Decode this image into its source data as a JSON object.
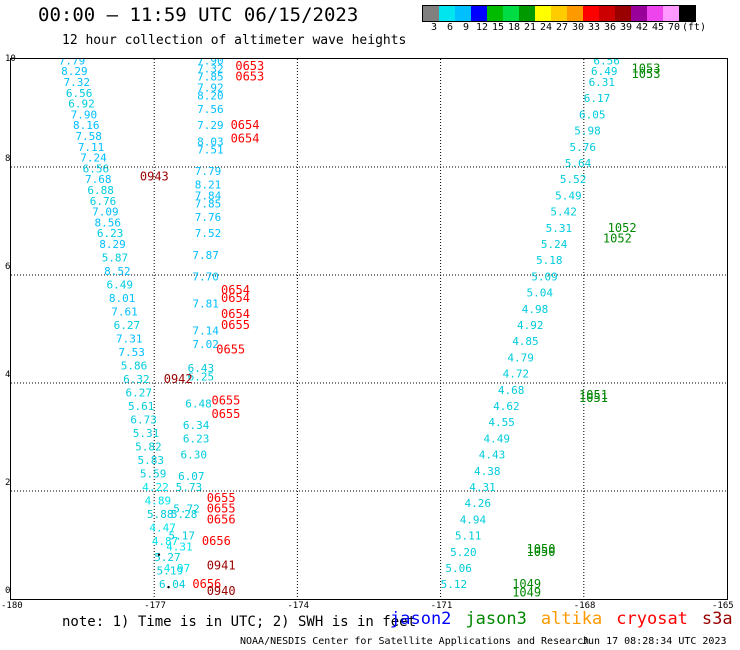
{
  "header": {
    "title": "00:00 – 11:59 UTC 06/15/2023",
    "subtitle": "12 hour collection of altimeter wave heights"
  },
  "colorbar": {
    "colors": [
      "#808080",
      "#00e5ee",
      "#00bfff",
      "#0000ff",
      "#00bb00",
      "#00dd44",
      "#009900",
      "#ffff00",
      "#ffcc00",
      "#ff9900",
      "#ff0000",
      "#cc0000",
      "#990000",
      "#990099",
      "#ee44ee",
      "#ff99ff",
      "#000000"
    ],
    "labels": [
      "3",
      "6",
      "9",
      "12",
      "15",
      "18",
      "21",
      "24",
      "27",
      "30",
      "33",
      "36",
      "39",
      "42",
      "45",
      "70",
      "(ft)"
    ]
  },
  "axes": {
    "x_ticks": [
      "-180",
      "-177",
      "-174",
      "-171",
      "-168",
      "-165"
    ],
    "y_ticks": [
      "0",
      "2",
      "4",
      "6",
      "8",
      "10"
    ]
  },
  "map_data": {
    "xlim": [
      -180,
      -165
    ],
    "ylim": [
      0,
      10
    ],
    "track_a": [
      [
        -179.0,
        9.9,
        "7.79"
      ],
      [
        -178.95,
        9.7,
        "8.29"
      ],
      [
        -178.9,
        9.5,
        "7.32"
      ],
      [
        -178.85,
        9.3,
        "6.56"
      ],
      [
        -178.8,
        9.1,
        "6.92"
      ],
      [
        -178.75,
        8.9,
        "7.90"
      ],
      [
        -178.7,
        8.7,
        "8.16"
      ],
      [
        -178.65,
        8.5,
        "7.58"
      ],
      [
        -178.6,
        8.3,
        "7.11"
      ],
      [
        -178.55,
        8.1,
        "7.24"
      ],
      [
        -178.5,
        7.9,
        "6.56"
      ],
      [
        -178.45,
        7.7,
        "7.68"
      ],
      [
        -178.4,
        7.5,
        "6.88"
      ],
      [
        -178.35,
        7.3,
        "6.76"
      ],
      [
        -178.3,
        7.1,
        "7.09"
      ],
      [
        -178.25,
        6.9,
        "8.56"
      ],
      [
        -178.2,
        6.7,
        "6.23"
      ],
      [
        -178.15,
        6.5,
        "8.29"
      ],
      [
        -178.1,
        6.25,
        "5.87"
      ],
      [
        -178.05,
        6.0,
        "8.52"
      ],
      [
        -178.0,
        5.75,
        "6.49"
      ],
      [
        -177.95,
        5.5,
        "8.01"
      ],
      [
        -177.9,
        5.25,
        "7.61"
      ],
      [
        -177.85,
        5.0,
        "6.27"
      ],
      [
        -177.8,
        4.75,
        "7.31"
      ],
      [
        -177.75,
        4.5,
        "7.53"
      ],
      [
        -177.7,
        4.25,
        "5.86"
      ],
      [
        -177.65,
        4.0,
        "6.32"
      ],
      [
        -177.6,
        3.75,
        "6.27"
      ],
      [
        -177.55,
        3.5,
        "5.61"
      ],
      [
        -177.5,
        3.25,
        "6.73"
      ],
      [
        -177.45,
        3.0,
        "5.31"
      ],
      [
        -177.4,
        2.75,
        "5.82"
      ],
      [
        -177.35,
        2.5,
        "5.83"
      ],
      [
        -177.3,
        2.25,
        "5.59"
      ],
      [
        -177.25,
        2.0,
        "4.22"
      ],
      [
        -177.2,
        1.75,
        "4.89"
      ],
      [
        -177.15,
        1.5,
        "5.88"
      ],
      [
        -177.1,
        1.25,
        "4.47"
      ],
      [
        -177.05,
        1.0,
        "4.87"
      ],
      [
        -177.0,
        0.7,
        "5.27"
      ],
      [
        -176.95,
        0.45,
        "5.19"
      ],
      [
        -176.9,
        0.2,
        "6.04"
      ]
    ],
    "track_b": [
      [
        -176.1,
        9.9,
        "7.90"
      ],
      [
        -176.1,
        9.75,
        "7.32"
      ],
      [
        -176.1,
        9.6,
        "7.85"
      ],
      [
        -176.1,
        9.4,
        "7.92"
      ],
      [
        -176.1,
        9.25,
        "8.20"
      ],
      [
        -176.1,
        9.0,
        "7.56"
      ],
      [
        -176.1,
        8.7,
        "7.29"
      ],
      [
        -176.1,
        8.4,
        "8.03"
      ],
      [
        -176.1,
        8.25,
        "7.51"
      ],
      [
        -176.15,
        7.85,
        "7.79"
      ],
      [
        -176.15,
        7.6,
        "8.21"
      ],
      [
        -176.15,
        7.4,
        "7.84"
      ],
      [
        -176.15,
        7.25,
        "7.85"
      ],
      [
        -176.15,
        7.0,
        "7.76"
      ],
      [
        -176.15,
        6.7,
        "7.52"
      ],
      [
        -176.2,
        6.3,
        "7.87"
      ],
      [
        -176.2,
        5.9,
        "7.70"
      ],
      [
        -176.2,
        5.4,
        "7.81"
      ],
      [
        -176.2,
        4.9,
        "7.14"
      ],
      [
        -176.2,
        4.65,
        "7.02"
      ],
      [
        -176.3,
        4.2,
        "6.43"
      ],
      [
        -176.3,
        4.05,
        "6.25"
      ],
      [
        -176.35,
        3.55,
        "6.48"
      ],
      [
        -176.4,
        3.15,
        "6.34"
      ],
      [
        -176.4,
        2.9,
        "6.23"
      ],
      [
        -176.45,
        2.6,
        "6.30"
      ],
      [
        -176.5,
        2.2,
        "6.07"
      ],
      [
        -176.55,
        2.0,
        "5.73"
      ],
      [
        -176.6,
        1.6,
        "5.72"
      ],
      [
        -176.65,
        1.5,
        "5.28"
      ],
      [
        -176.7,
        1.1,
        "5.17"
      ],
      [
        -176.75,
        0.9,
        "4.31"
      ],
      [
        -176.8,
        0.5,
        "4.97"
      ]
    ],
    "track_c": [
      [
        -167.8,
        9.9,
        "6.56"
      ],
      [
        -167.85,
        9.7,
        "6.49"
      ],
      [
        -167.9,
        9.5,
        "6.31"
      ],
      [
        -168.0,
        9.2,
        "6.17"
      ],
      [
        -168.1,
        8.9,
        "6.05"
      ],
      [
        -168.2,
        8.6,
        "5.98"
      ],
      [
        -168.3,
        8.3,
        "5.76"
      ],
      [
        -168.4,
        8.0,
        "5.64"
      ],
      [
        -168.5,
        7.7,
        "5.52"
      ],
      [
        -168.6,
        7.4,
        "5.49"
      ],
      [
        -168.7,
        7.1,
        "5.42"
      ],
      [
        -168.8,
        6.8,
        "5.31"
      ],
      [
        -168.9,
        6.5,
        "5.24"
      ],
      [
        -169.0,
        6.2,
        "5.18"
      ],
      [
        -169.1,
        5.9,
        "5.09"
      ],
      [
        -169.2,
        5.6,
        "5.04"
      ],
      [
        -169.3,
        5.3,
        "4.98"
      ],
      [
        -169.4,
        5.0,
        "4.92"
      ],
      [
        -169.5,
        4.7,
        "4.85"
      ],
      [
        -169.6,
        4.4,
        "4.79"
      ],
      [
        -169.7,
        4.1,
        "4.72"
      ],
      [
        -169.8,
        3.8,
        "4.68"
      ],
      [
        -169.9,
        3.5,
        "4.62"
      ],
      [
        -170.0,
        3.2,
        "4.55"
      ],
      [
        -170.1,
        2.9,
        "4.49"
      ],
      [
        -170.2,
        2.6,
        "4.43"
      ],
      [
        -170.3,
        2.3,
        "4.38"
      ],
      [
        -170.4,
        2.0,
        "4.31"
      ],
      [
        -170.5,
        1.7,
        "4.26"
      ],
      [
        -170.6,
        1.4,
        "4.94"
      ],
      [
        -170.7,
        1.1,
        "5.11"
      ],
      [
        -170.8,
        0.8,
        "5.20"
      ],
      [
        -170.9,
        0.5,
        "5.06"
      ],
      [
        -171.0,
        0.2,
        "5.12"
      ]
    ],
    "time_labels": [
      [
        -175.3,
        9.8,
        "0653",
        "#ff0000"
      ],
      [
        -175.3,
        9.6,
        "0653",
        "#ff0000"
      ],
      [
        -175.4,
        8.7,
        "0654",
        "#ff0000"
      ],
      [
        -175.4,
        8.45,
        "0654",
        "#ff0000"
      ],
      [
        -177.3,
        7.75,
        "0943",
        "#990000"
      ],
      [
        -175.6,
        5.65,
        "0654",
        "#ff0000"
      ],
      [
        -175.6,
        5.5,
        "0654",
        "#ff0000"
      ],
      [
        -175.6,
        5.2,
        "0654",
        "#ff0000"
      ],
      [
        -175.6,
        5.0,
        "0655",
        "#ff0000"
      ],
      [
        -175.7,
        4.55,
        "0655",
        "#ff0000"
      ],
      [
        -176.8,
        4.0,
        "0942",
        "#990000"
      ],
      [
        -175.8,
        3.6,
        "0655",
        "#ff0000"
      ],
      [
        -175.8,
        3.35,
        "0655",
        "#ff0000"
      ],
      [
        -175.9,
        1.8,
        "0655",
        "#ff0000"
      ],
      [
        -175.9,
        1.6,
        "0655",
        "#ff0000"
      ],
      [
        -175.9,
        1.4,
        "0656",
        "#ff0000"
      ],
      [
        -176.0,
        1.0,
        "0656",
        "#ff0000"
      ],
      [
        -175.9,
        0.55,
        "0941",
        "#990000"
      ],
      [
        -176.2,
        0.2,
        "0656",
        "#ff0000"
      ],
      [
        -175.9,
        0.07,
        "0940",
        "#990000"
      ],
      [
        -167.0,
        9.75,
        "1053",
        "#008800"
      ],
      [
        -167.0,
        9.65,
        "1053",
        "#008800"
      ],
      [
        -167.5,
        6.8,
        "1052",
        "#008800"
      ],
      [
        -167.6,
        6.6,
        "1052",
        "#008800"
      ],
      [
        -168.1,
        3.7,
        "1051",
        "#008800"
      ],
      [
        -168.1,
        3.65,
        "1051",
        "#008800"
      ],
      [
        -169.2,
        0.85,
        "1050",
        "#008800"
      ],
      [
        -169.2,
        0.8,
        "1050",
        "#008800"
      ],
      [
        -169.5,
        0.2,
        "1049",
        "#008800"
      ],
      [
        -169.5,
        0.05,
        "1049",
        "#008800"
      ]
    ],
    "markers": [
      [
        -176.9,
        0.82
      ],
      [
        -176.7,
        0.22
      ]
    ]
  },
  "footer": {
    "note": "note: 1) Time is in UTC; 2) SWH is in feet",
    "legend": [
      {
        "name": "jason2",
        "color": "#0000ff"
      },
      {
        "name": "jason3",
        "color": "#008800"
      },
      {
        "name": "altika",
        "color": "#ff9900"
      },
      {
        "name": "cryosat",
        "color": "#ff0000"
      },
      {
        "name": "s3a",
        "color": "#990000"
      }
    ],
    "credit": "NOAA/NESDIS Center for Satellite Applications and Research",
    "stamp": "Jun 17 08:28:34 UTC 2023"
  }
}
